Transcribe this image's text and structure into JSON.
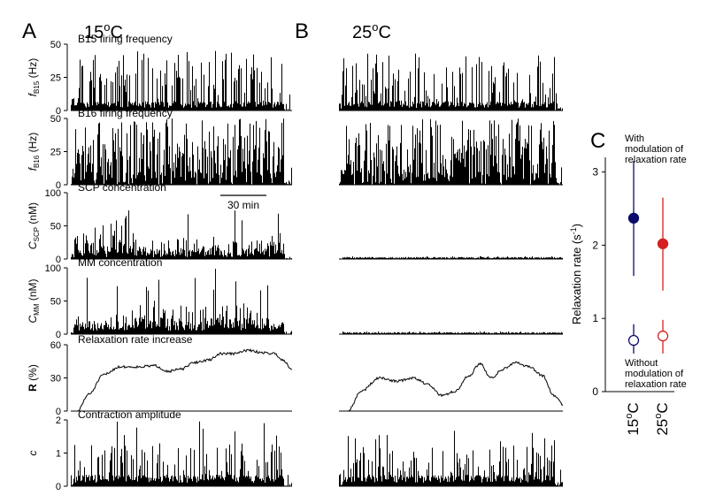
{
  "panels": {
    "A": {
      "letter": "A",
      "title": "15°C",
      "title_base": "15",
      "title_sup": "o",
      "title_unit": "C"
    },
    "B": {
      "letter": "B",
      "title": "25°C",
      "title_base": "25",
      "title_sup": "o",
      "title_unit": "C"
    },
    "C": {
      "letter": "C"
    }
  },
  "scale_bar": {
    "label": "30 min"
  },
  "rows": [
    {
      "title": "B15 firing frequency",
      "ylabel": "fB15 (Hz)",
      "ylabel_main": "f",
      "ylabel_sub": "B15",
      "ylabel_unit": " (Hz)",
      "ylabel_style": "italic",
      "yticks": [
        "50",
        "25",
        "0"
      ],
      "ylim": [
        0,
        50
      ],
      "traces": {
        "15C": {
          "kind": "spikes",
          "baseline": 5,
          "peak": 38,
          "max": 45,
          "seed": 11
        },
        "25C": {
          "kind": "spikes",
          "baseline": 5,
          "peak": 38,
          "max": 43,
          "seed": 12
        }
      }
    },
    {
      "title": "B16 firing frequency",
      "ylabel": "fB16 (Hz)",
      "ylabel_main": "f",
      "ylabel_sub": "B16",
      "ylabel_unit": " (Hz)",
      "ylabel_style": "italic",
      "yticks": [
        "50",
        "25",
        "0"
      ],
      "ylim": [
        0,
        50
      ],
      "traces": {
        "15C": {
          "kind": "dense",
          "baseline": 5,
          "peak": 45,
          "max": 50,
          "seed": 21
        },
        "25C": {
          "kind": "dense",
          "baseline": 5,
          "peak": 45,
          "max": 50,
          "seed": 22
        }
      }
    },
    {
      "title": "SCP concentration",
      "ylabel": "CSCP (nM)",
      "ylabel_main": "C",
      "ylabel_sub": "SCP",
      "ylabel_unit": " (nM)",
      "ylabel_style": "italic",
      "yticks": [
        "100",
        "50",
        "0"
      ],
      "ylim": [
        0,
        100
      ],
      "traces": {
        "15C": {
          "kind": "conc",
          "baseline": 3,
          "peak": 55,
          "max": 75,
          "seed": 31
        },
        "25C": {
          "kind": "flat",
          "baseline": 1,
          "peak": 3,
          "max": 4,
          "seed": 32
        }
      }
    },
    {
      "title": "MM concentration",
      "ylabel": "CMM (nM)",
      "ylabel_main": "C",
      "ylabel_sub": "MM",
      "ylabel_unit": " (nM)",
      "ylabel_style": "italic",
      "yticks": [
        "100",
        "50",
        "0"
      ],
      "ylim": [
        0,
        100
      ],
      "traces": {
        "15C": {
          "kind": "conc",
          "baseline": 5,
          "peak": 60,
          "max": 100,
          "seed": 41
        },
        "25C": {
          "kind": "flat",
          "baseline": 1,
          "peak": 3,
          "max": 4,
          "seed": 42
        }
      }
    },
    {
      "title": "Relaxation rate increase",
      "ylabel": "R (%)",
      "ylabel_main": "R",
      "ylabel_sub": "",
      "ylabel_unit": " (%)",
      "ylabel_style": "bold",
      "yticks": [
        "60",
        "30",
        "0"
      ],
      "ylim": [
        0,
        60
      ],
      "traces": {
        "15C": {
          "kind": "curve",
          "knots": [
            [
              0,
              0
            ],
            [
              0.03,
              0
            ],
            [
              0.08,
              15
            ],
            [
              0.15,
              33
            ],
            [
              0.22,
              40
            ],
            [
              0.3,
              40
            ],
            [
              0.38,
              41
            ],
            [
              0.44,
              36
            ],
            [
              0.5,
              38
            ],
            [
              0.56,
              44
            ],
            [
              0.62,
              46
            ],
            [
              0.68,
              52
            ],
            [
              0.74,
              52
            ],
            [
              0.8,
              55
            ],
            [
              0.86,
              53
            ],
            [
              0.92,
              52
            ],
            [
              0.96,
              46
            ],
            [
              1.0,
              38
            ]
          ],
          "seed": 51
        },
        "25C": {
          "kind": "curve",
          "knots": [
            [
              0,
              0
            ],
            [
              0.04,
              0
            ],
            [
              0.1,
              18
            ],
            [
              0.18,
              30
            ],
            [
              0.26,
              27
            ],
            [
              0.33,
              30
            ],
            [
              0.4,
              24
            ],
            [
              0.46,
              14
            ],
            [
              0.52,
              18
            ],
            [
              0.58,
              32
            ],
            [
              0.63,
              43
            ],
            [
              0.68,
              30
            ],
            [
              0.73,
              38
            ],
            [
              0.79,
              44
            ],
            [
              0.85,
              40
            ],
            [
              0.91,
              32
            ],
            [
              0.96,
              14
            ],
            [
              1.0,
              6
            ]
          ],
          "seed": 52
        }
      }
    },
    {
      "title": "Contraction amplitude",
      "ylabel": "c",
      "ylabel_main": "c",
      "ylabel_sub": "",
      "ylabel_unit": "",
      "ylabel_style": "italic",
      "yticks": [
        "2",
        "1",
        "0"
      ],
      "ylim": [
        0,
        2
      ],
      "traces": {
        "15C": {
          "kind": "amp",
          "baseline": 0.25,
          "peak": 1.3,
          "max": 2.0,
          "seed": 61
        },
        "25C": {
          "kind": "amp",
          "baseline": 0.25,
          "peak": 1.2,
          "max": 1.7,
          "seed": 62
        }
      }
    }
  ],
  "chart_data": {
    "type": "scatter",
    "ylabel": "Relaxation rate (s-1)",
    "ylabel_main": "Relaxation rate (s",
    "ylabel_sup": "-1",
    "ylabel_close": ")",
    "ylim": [
      0,
      3.2
    ],
    "yticks": [
      "3",
      "2",
      "1",
      "0"
    ],
    "categories": [
      "15°C",
      "25°C"
    ],
    "category_parts": [
      {
        "base": "15",
        "sup": "o",
        "unit": "C"
      },
      {
        "base": "25",
        "sup": "o",
        "unit": "C"
      }
    ],
    "series": [
      {
        "name": "With modulation of relaxation rate",
        "filled": true,
        "points": [
          {
            "mean": 2.37,
            "low": 1.58,
            "high": 3.15,
            "color": "#0b0b6b"
          },
          {
            "mean": 2.02,
            "low": 1.38,
            "high": 2.65,
            "color": "#d42020"
          }
        ]
      },
      {
        "name": "Without modulation of relaxation rate",
        "filled": false,
        "points": [
          {
            "mean": 0.7,
            "low": 0.52,
            "high": 0.92,
            "color": "#0b0b6b"
          },
          {
            "mean": 0.76,
            "low": 0.52,
            "high": 0.98,
            "color": "#d42020"
          }
        ]
      }
    ],
    "annotation_top": [
      "With",
      "modulation of",
      "relaxation rate"
    ],
    "annotation_bottom": [
      "Without",
      "modulation of",
      "relaxation rate"
    ]
  }
}
